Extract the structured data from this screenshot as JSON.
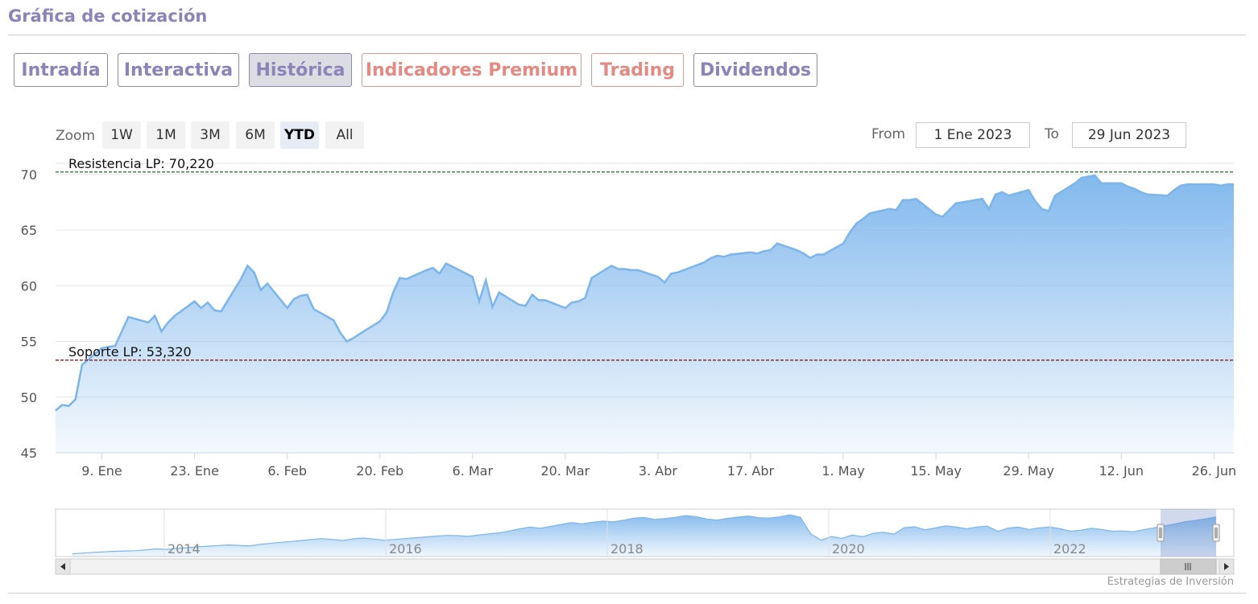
{
  "header": {
    "title": "Gráfica de cotización"
  },
  "tabs": [
    {
      "label": "Intradía",
      "active": false
    },
    {
      "label": "Interactiva",
      "active": false
    },
    {
      "label": "Histórica",
      "active": true
    },
    {
      "label": "Indicadores Premium",
      "active": false
    },
    {
      "label": "Trading",
      "active": false
    },
    {
      "label": "Dividendos",
      "active": false
    }
  ],
  "zoom": {
    "label": "Zoom",
    "buttons": [
      "1W",
      "1M",
      "3M",
      "6M",
      "YTD",
      "All"
    ],
    "selected": "YTD"
  },
  "range": {
    "from_label": "From",
    "from_value": "1 Ene 2023",
    "to_label": "To",
    "to_value": "29 Jun 2023"
  },
  "colors": {
    "line": "#7cb5ec",
    "resistance": "#2e7d32",
    "support": "#8b1a1a",
    "accent": "#8c83b8",
    "accent_red": "#e48a83"
  },
  "chart_data": {
    "type": "area",
    "ylim": [
      45,
      71
    ],
    "yticks": [
      45,
      50,
      55,
      60,
      65,
      70
    ],
    "xticks": [
      "9. Ene",
      "23. Ene",
      "6. Feb",
      "20. Feb",
      "6. Mar",
      "20. Mar",
      "3. Abr",
      "17. Abr",
      "1. May",
      "15. May",
      "29. May",
      "12. Jun",
      "26. Jun"
    ],
    "xlim": [
      "2023-01-02",
      "2023-06-29"
    ],
    "annotations": [
      {
        "label": "Resistencia LP: 70,220",
        "value": 70.22
      },
      {
        "label": "Soporte LP: 53,320",
        "value": 53.32
      }
    ],
    "series": [
      {
        "x": [
          "2023-01-02",
          "2023-01-03",
          "2023-01-04",
          "2023-01-05",
          "2023-01-06",
          "2023-01-09",
          "2023-01-10",
          "2023-01-11",
          "2023-01-12",
          "2023-01-13",
          "2023-01-16",
          "2023-01-17",
          "2023-01-18",
          "2023-01-19",
          "2023-01-20",
          "2023-01-23",
          "2023-01-24",
          "2023-01-25",
          "2023-01-26",
          "2023-01-27",
          "2023-01-30",
          "2023-01-31",
          "2023-02-01",
          "2023-02-02",
          "2023-02-03",
          "2023-02-06",
          "2023-02-07",
          "2023-02-08",
          "2023-02-09",
          "2023-02-10",
          "2023-02-13",
          "2023-02-14",
          "2023-02-15",
          "2023-02-16",
          "2023-02-17",
          "2023-02-20",
          "2023-02-21",
          "2023-02-22",
          "2023-02-23",
          "2023-02-24",
          "2023-02-27",
          "2023-02-28",
          "2023-03-01",
          "2023-03-02",
          "2023-03-03",
          "2023-03-06",
          "2023-03-07",
          "2023-03-08",
          "2023-03-09",
          "2023-03-10",
          "2023-03-13",
          "2023-03-14",
          "2023-03-15",
          "2023-03-16",
          "2023-03-17",
          "2023-03-20",
          "2023-03-21",
          "2023-03-22",
          "2023-03-23",
          "2023-03-24",
          "2023-03-27",
          "2023-03-28",
          "2023-03-29",
          "2023-03-30",
          "2023-03-31",
          "2023-04-03",
          "2023-04-04",
          "2023-04-05",
          "2023-04-06",
          "2023-04-10",
          "2023-04-11",
          "2023-04-12",
          "2023-04-13",
          "2023-04-14",
          "2023-04-17",
          "2023-04-18",
          "2023-04-19",
          "2023-04-20",
          "2023-04-21",
          "2023-04-24",
          "2023-04-25",
          "2023-04-26",
          "2023-04-27",
          "2023-04-28",
          "2023-05-01",
          "2023-05-02",
          "2023-05-03",
          "2023-05-04",
          "2023-05-05",
          "2023-05-08",
          "2023-05-09",
          "2023-05-10",
          "2023-05-11",
          "2023-05-12",
          "2023-05-15",
          "2023-05-16",
          "2023-05-17",
          "2023-05-18",
          "2023-05-19",
          "2023-05-22",
          "2023-05-23",
          "2023-05-24",
          "2023-05-25",
          "2023-05-26",
          "2023-05-29",
          "2023-05-30",
          "2023-05-31",
          "2023-06-01",
          "2023-06-02",
          "2023-06-05",
          "2023-06-06",
          "2023-06-07",
          "2023-06-08",
          "2023-06-09",
          "2023-06-12",
          "2023-06-13",
          "2023-06-14",
          "2023-06-15",
          "2023-06-16",
          "2023-06-19",
          "2023-06-20",
          "2023-06-21",
          "2023-06-22",
          "2023-06-23",
          "2023-06-26",
          "2023-06-27",
          "2023-06-28",
          "2023-06-29"
        ],
        "y": [
          48.8,
          49.3,
          49.2,
          49.8,
          52.9,
          54.4,
          54.5,
          54.6,
          55.9,
          57.2,
          56.7,
          57.3,
          55.9,
          56.7,
          57.3,
          58.6,
          58.0,
          58.5,
          57.8,
          57.7,
          60.6,
          61.8,
          61.2,
          59.6,
          60.2,
          58.0,
          58.8,
          59.1,
          59.2,
          57.9,
          56.9,
          55.8,
          55.0,
          55.3,
          55.7,
          56.8,
          57.6,
          59.4,
          60.7,
          60.6,
          61.4,
          61.6,
          61.1,
          62.0,
          61.7,
          60.8,
          58.6,
          60.5,
          58.1,
          59.4,
          58.3,
          58.2,
          59.2,
          58.7,
          58.7,
          58.0,
          58.5,
          58.6,
          58.9,
          60.7,
          61.8,
          61.5,
          61.5,
          61.4,
          61.4,
          60.8,
          60.3,
          61.1,
          61.2,
          62.1,
          62.5,
          62.7,
          62.6,
          62.8,
          63.0,
          62.9,
          63.1,
          63.2,
          63.8,
          63.2,
          62.9,
          62.5,
          62.8,
          62.8,
          63.8,
          64.8,
          65.6,
          66.0,
          66.5,
          66.9,
          66.8,
          67.7,
          67.7,
          67.8,
          66.4,
          66.2,
          66.8,
          67.4,
          67.5,
          67.8,
          66.9,
          68.2,
          68.4,
          68.1,
          68.6,
          67.6,
          66.9,
          66.7,
          68.1,
          69.2,
          69.7,
          69.8,
          69.9,
          69.2,
          69.2,
          68.9,
          68.7,
          68.4,
          68.2,
          68.1,
          68.6,
          69.0,
          69.1,
          69.1,
          69.1,
          69.0,
          69.1,
          69.1
        ]
      }
    ],
    "navigator": {
      "xticks": [
        "2014",
        "2016",
        "2018",
        "2020",
        "2022"
      ],
      "values": [
        12,
        12.5,
        13,
        13.4,
        13.8,
        14,
        14.2,
        14.8,
        15.5,
        15.2,
        15.8,
        16.4,
        17,
        17.5,
        18,
        18.4,
        18.1,
        17.6,
        18.8,
        19.5,
        20.3,
        20.9,
        21.6,
        22.4,
        23,
        22.4,
        21.6,
        22.8,
        23.4,
        22.6,
        21.8,
        22.4,
        23,
        23.6,
        24.2,
        24.8,
        25.3,
        25.1,
        24.6,
        25.5,
        26.4,
        27.1,
        28.5,
        30,
        31.3,
        30.5,
        31.8,
        33.2,
        34.5,
        33.6,
        34.8,
        35.6,
        35.1,
        36.3,
        37.8,
        38.2,
        36.9,
        37.5,
        38.4,
        39.6,
        38.8,
        37.2,
        36.4,
        37.6,
        38.5,
        39.3,
        38.1,
        37.8,
        38.7,
        40.2,
        38.5,
        26.5,
        21.8,
        24.5,
        23.1,
        25.6,
        24.3,
        26.8,
        27.5,
        26.2,
        30.9,
        31.5,
        29.4,
        30.8,
        32.2,
        31.3,
        30.1,
        31.4,
        32,
        28.2,
        30.6,
        31.3,
        29.6,
        30.8,
        31.4,
        30.2,
        28.3,
        29.1,
        30.4,
        29.6,
        28.3,
        28.5,
        27.9,
        29.4,
        30.8,
        32.1,
        33.5,
        35.2,
        36.1,
        37.3,
        38.7
      ]
    }
  },
  "scrollbar": {
    "thumb_icon": "grip-icon",
    "left_icon": "arrow-left-icon",
    "right_icon": "arrow-right-icon"
  },
  "footer": {
    "credit": "Estrategias de Inversión"
  }
}
